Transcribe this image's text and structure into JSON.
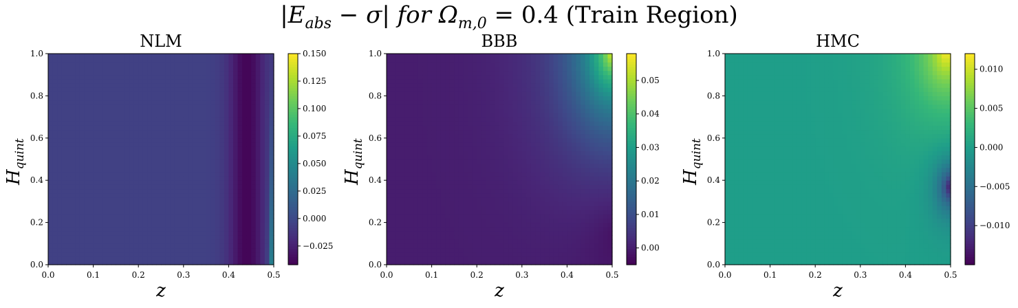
{
  "figure": {
    "title_prefix": "|E",
    "title_sub": "abs",
    "title_mid": " − σ| for Ω",
    "title_sub2": "m,0",
    "title_suffix": " = 0.4 (Train Region)"
  },
  "chart_data": [
    {
      "type": "heatmap",
      "title": "NLM",
      "xlabel": "z",
      "ylabel": "H",
      "ylabel_sub": "quint",
      "xlim": [
        0.0,
        0.5
      ],
      "ylim": [
        0.0,
        1.0
      ],
      "x_ticks": [
        "0.0",
        "0.1",
        "0.2",
        "0.3",
        "0.4",
        "0.5"
      ],
      "y_ticks": [
        "0.0",
        "0.2",
        "0.4",
        "0.6",
        "0.8",
        "1.0"
      ],
      "colorbar_range": [
        -0.042,
        0.15
      ],
      "colorbar_ticks": [
        "−0.025",
        "0.000",
        "0.025",
        "0.050",
        "0.075",
        "0.100",
        "0.125",
        "0.150"
      ],
      "colormap": "viridis",
      "pattern": "nlm",
      "grid": false
    },
    {
      "type": "heatmap",
      "title": "BBB",
      "xlabel": "z",
      "ylabel": "H",
      "ylabel_sub": "quint",
      "xlim": [
        0.0,
        0.5
      ],
      "ylim": [
        0.0,
        1.0
      ],
      "x_ticks": [
        "0.0",
        "0.1",
        "0.2",
        "0.3",
        "0.4",
        "0.5"
      ],
      "y_ticks": [
        "0.0",
        "0.2",
        "0.4",
        "0.6",
        "0.8",
        "1.0"
      ],
      "colorbar_range": [
        -0.005,
        0.058
      ],
      "colorbar_ticks": [
        "0.00",
        "0.01",
        "0.02",
        "0.03",
        "0.04",
        "0.05"
      ],
      "colormap": "viridis",
      "pattern": "bbb",
      "grid": false
    },
    {
      "type": "heatmap",
      "title": "HMC",
      "xlabel": "z",
      "ylabel": "H",
      "ylabel_sub": "quint",
      "xlim": [
        0.0,
        0.5
      ],
      "ylim": [
        0.0,
        1.0
      ],
      "x_ticks": [
        "0.0",
        "0.1",
        "0.2",
        "0.3",
        "0.4",
        "0.5"
      ],
      "y_ticks": [
        "0.0",
        "0.2",
        "0.4",
        "0.6",
        "0.8",
        "1.0"
      ],
      "colorbar_range": [
        -0.015,
        0.012
      ],
      "colorbar_ticks": [
        "−0.010",
        "−0.005",
        "0.000",
        "0.005",
        "0.010"
      ],
      "colormap": "viridis",
      "pattern": "hmc",
      "grid": false
    }
  ]
}
